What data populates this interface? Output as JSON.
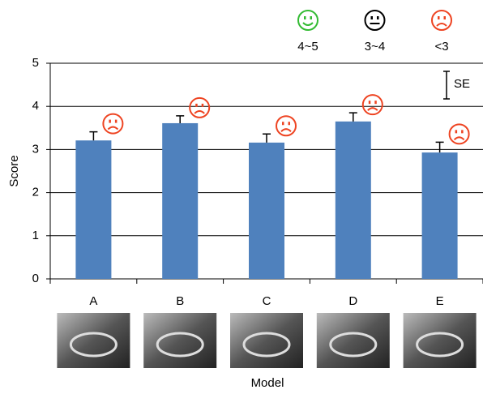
{
  "chart_data": {
    "type": "bar",
    "y_label": "Score",
    "x_label": "Model",
    "categories": [
      "A",
      "B",
      "C",
      "D",
      "E"
    ],
    "values": [
      3.21,
      3.61,
      3.16,
      3.65,
      2.93
    ],
    "errors": [
      0.2,
      0.17,
      0.2,
      0.2,
      0.24
    ],
    "color": "#4f81bd",
    "ylim": [
      0,
      5
    ],
    "yticks": [
      0,
      1,
      2,
      3,
      4,
      5
    ],
    "grid": true,
    "error_legend": "SE",
    "face_legend": [
      {
        "label": "4~5",
        "color": "#33bb33"
      },
      {
        "label": "3~4",
        "color": "#000000"
      },
      {
        "label": "<3",
        "color": "#ee4422"
      }
    ]
  }
}
